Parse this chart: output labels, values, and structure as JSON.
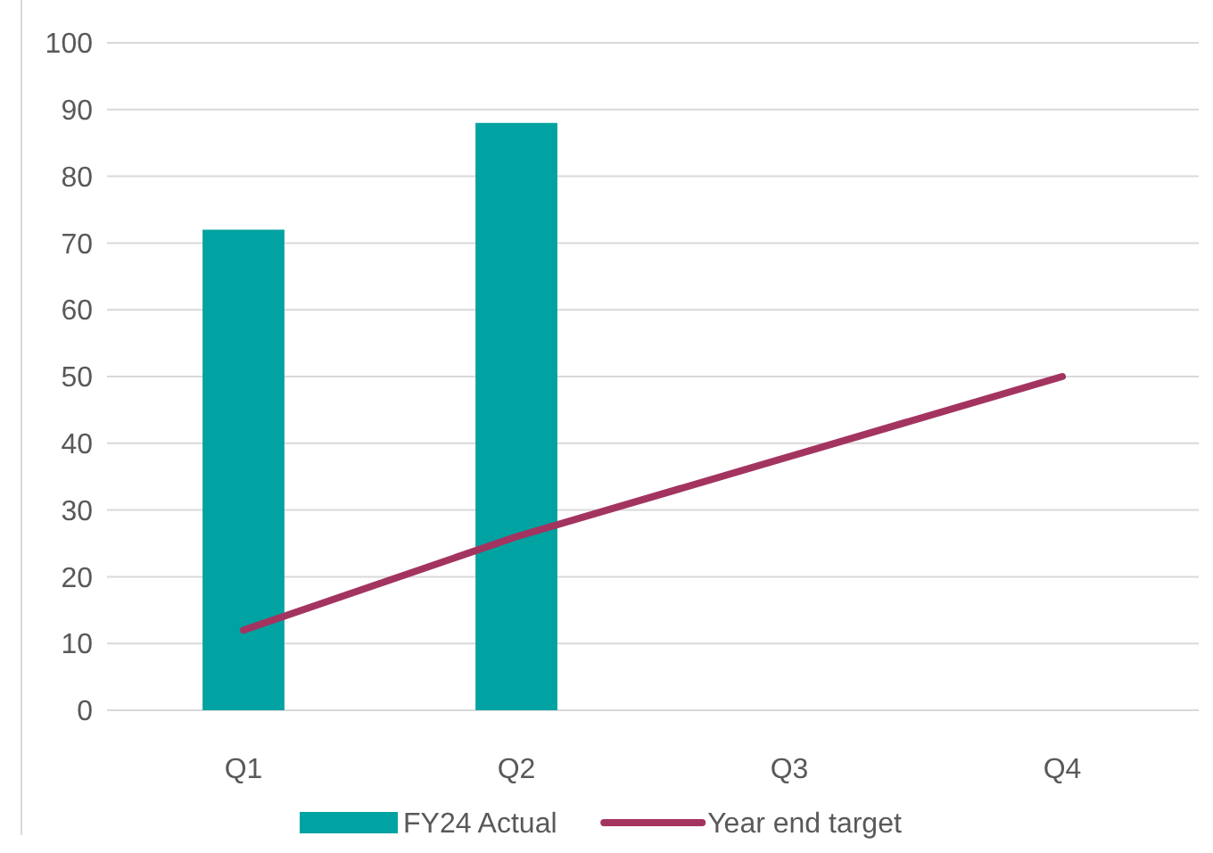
{
  "chart_data": {
    "type": "bar",
    "categories": [
      "Q1",
      "Q2",
      "Q3",
      "Q4"
    ],
    "series": [
      {
        "name": "FY24 Actual",
        "color": "#00a3a1",
        "values": [
          72,
          88,
          null,
          null
        ]
      },
      {
        "name": "Year end target",
        "type": "line",
        "color": "#a33460",
        "values": [
          12,
          26,
          38,
          50
        ]
      }
    ],
    "ylim": [
      0,
      100
    ],
    "yticks": [
      0,
      10,
      20,
      30,
      40,
      50,
      60,
      70,
      80,
      90,
      100
    ],
    "grid": "y",
    "legend": "bottom"
  }
}
